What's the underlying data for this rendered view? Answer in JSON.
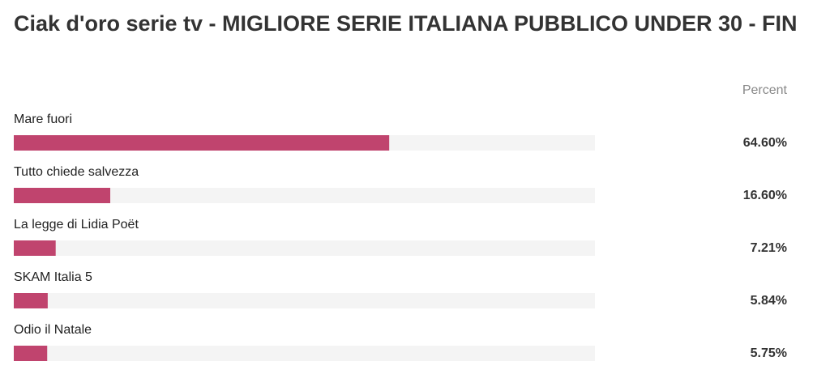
{
  "chart_data": {
    "type": "bar",
    "orientation": "horizontal",
    "title": "Ciak d'oro serie tv - MIGLIORE SERIE ITALIANA PUBBLICO UNDER 30 - FIN",
    "value_header": "Percent",
    "categories": [
      "Mare fuori",
      "Tutto chiede salvezza",
      "La legge di Lidia Poët",
      "SKAM Italia 5",
      "Odio il Natale"
    ],
    "values": [
      64.6,
      16.6,
      7.21,
      5.84,
      5.75
    ],
    "value_labels": [
      "64.60%",
      "16.60%",
      "7.21%",
      "5.84%",
      "5.75%"
    ],
    "color": "#c0446e",
    "xlim": [
      0,
      100
    ]
  }
}
